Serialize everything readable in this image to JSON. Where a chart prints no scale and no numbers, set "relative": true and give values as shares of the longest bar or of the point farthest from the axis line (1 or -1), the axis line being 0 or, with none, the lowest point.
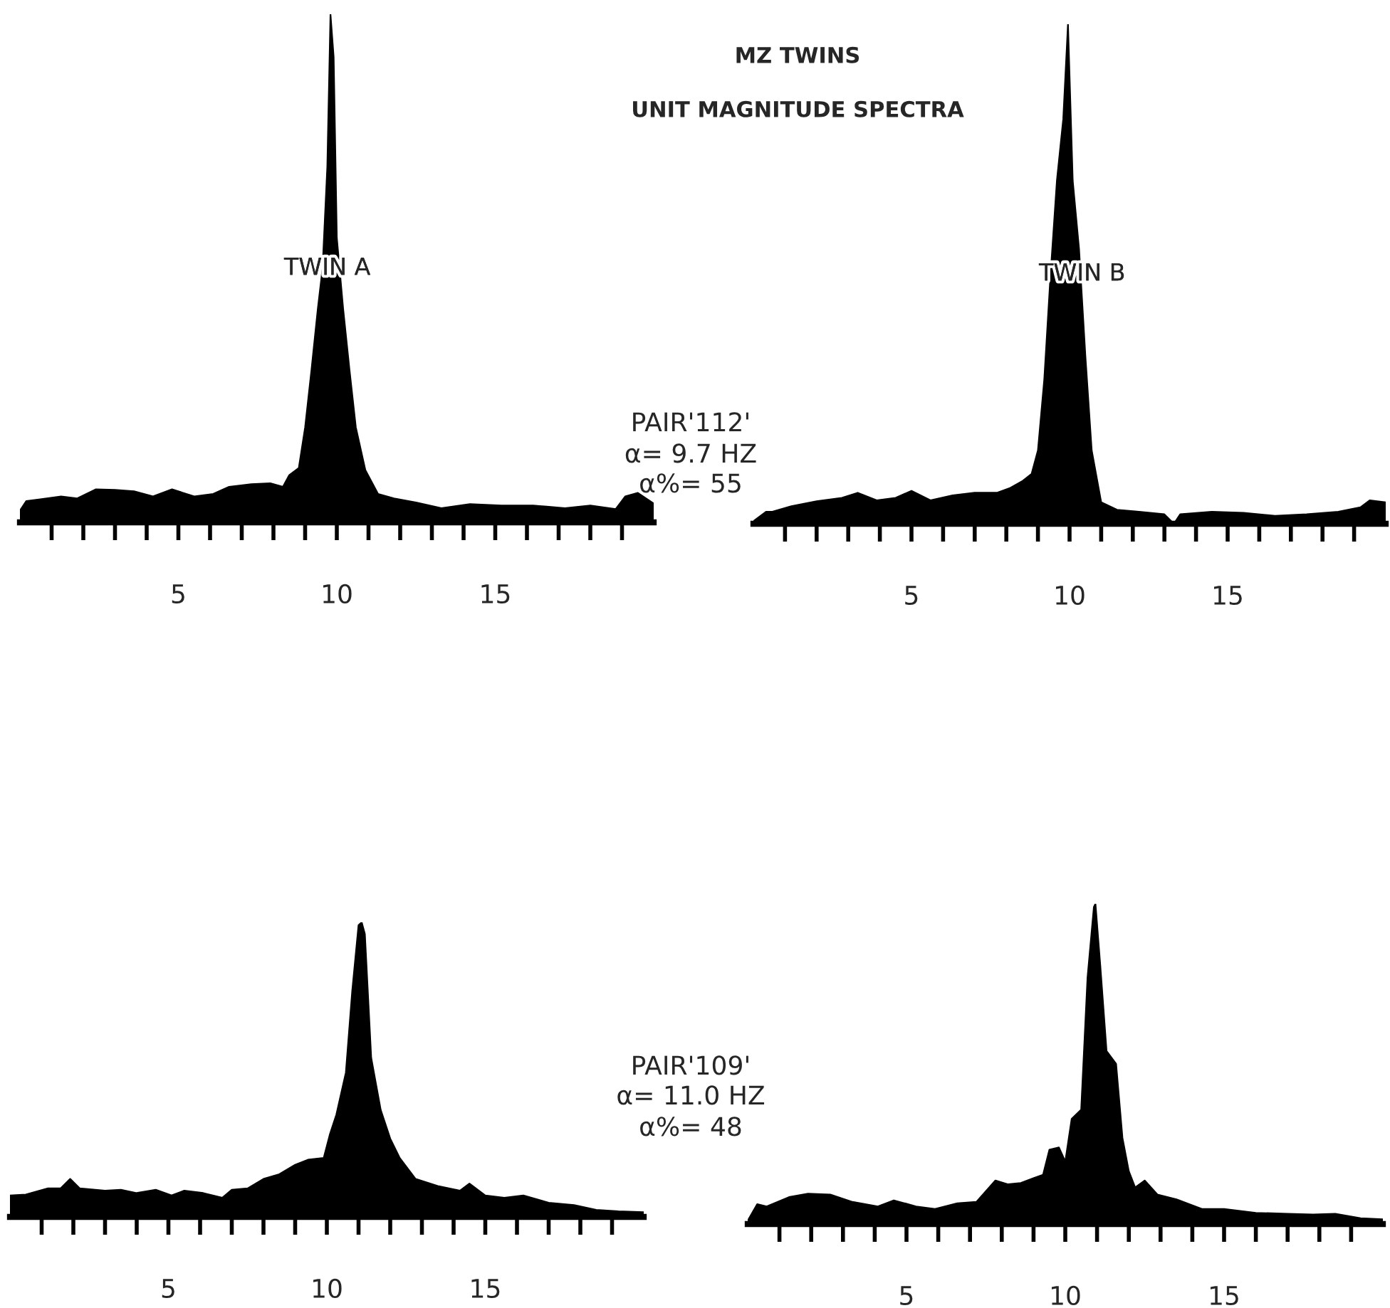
{
  "chart_data": [
    {
      "type": "area",
      "relative": true,
      "annotations": [
        "TWIN A",
        "PAIR'112'",
        "α= 9.7 HZ",
        "α%= 55"
      ],
      "xlim": [
        0,
        20
      ],
      "xticks": [
        {
          "value": 1,
          "label": null
        },
        {
          "value": 2,
          "label": null
        },
        {
          "value": 3,
          "label": null
        },
        {
          "value": 4,
          "label": null
        },
        5,
        {
          "value": 6,
          "label": null
        },
        {
          "value": 7,
          "label": null
        },
        {
          "value": 8,
          "label": null
        },
        {
          "value": 9,
          "label": null
        },
        10,
        {
          "value": 11,
          "label": null
        },
        {
          "value": 12,
          "label": null
        },
        {
          "value": 13,
          "label": null
        },
        {
          "value": 14,
          "label": null
        },
        15,
        {
          "value": 16,
          "label": null
        },
        {
          "value": 17,
          "label": null
        },
        {
          "value": 18,
          "label": null
        },
        {
          "value": 19,
          "label": null
        }
      ],
      "tick_labels": "x",
      "grid": false,
      "legend": false,
      "series": [
        {
          "color": "#000000",
          "x": [
            0.0,
            0.2,
            0.6,
            1.3,
            1.8,
            2.4,
            3.0,
            3.6,
            4.2,
            4.8,
            5.5,
            6.1,
            6.6,
            7.3,
            7.9,
            8.3,
            8.5,
            8.8,
            9.0,
            9.2,
            9.4,
            9.55,
            9.7,
            9.8,
            9.9,
            10.0,
            10.2,
            10.4,
            10.6,
            10.9,
            11.3,
            11.8,
            12.5,
            13.3,
            14.2,
            15.2,
            16.2,
            17.2,
            18.0,
            18.8,
            19.1,
            19.5,
            20.0
          ],
          "values": [
            0.023,
            0.042,
            0.045,
            0.051,
            0.047,
            0.065,
            0.064,
            0.061,
            0.051,
            0.065,
            0.051,
            0.056,
            0.07,
            0.075,
            0.077,
            0.07,
            0.093,
            0.107,
            0.187,
            0.3,
            0.42,
            0.5,
            0.7,
            1.0,
            0.916,
            0.56,
            0.42,
            0.3,
            0.187,
            0.103,
            0.056,
            0.047,
            0.039,
            0.028,
            0.036,
            0.033,
            0.033,
            0.028,
            0.033,
            0.026,
            0.051,
            0.058,
            0.037
          ]
        }
      ]
    },
    {
      "type": "area",
      "relative": true,
      "title": "MZ TWINS",
      "subtitle": "UNIT MAGNITUDE SPECTRA",
      "annotations": [
        "TWIN B"
      ],
      "xlim": [
        0,
        20
      ],
      "xticks": [
        {
          "value": 1,
          "label": null
        },
        {
          "value": 2,
          "label": null
        },
        {
          "value": 3,
          "label": null
        },
        {
          "value": 4,
          "label": null
        },
        5,
        {
          "value": 6,
          "label": null
        },
        {
          "value": 7,
          "label": null
        },
        {
          "value": 8,
          "label": null
        },
        {
          "value": 9,
          "label": null
        },
        10,
        {
          "value": 11,
          "label": null
        },
        {
          "value": 12,
          "label": null
        },
        {
          "value": 13,
          "label": null
        },
        {
          "value": 14,
          "label": null
        },
        15,
        {
          "value": 16,
          "label": null
        },
        {
          "value": 17,
          "label": null
        },
        {
          "value": 18,
          "label": null
        },
        {
          "value": 19,
          "label": null
        }
      ],
      "tick_labels": "x",
      "grid": false,
      "legend": false,
      "series": [
        {
          "color": "#000000",
          "x": [
            0.0,
            0.4,
            0.6,
            1.2,
            2.0,
            2.8,
            3.3,
            3.9,
            4.5,
            5.0,
            5.6,
            6.3,
            7.0,
            7.7,
            8.1,
            8.5,
            8.8,
            9.0,
            9.2,
            9.4,
            9.6,
            9.8,
            9.95,
            10.1,
            10.3,
            10.5,
            10.7,
            11.0,
            11.5,
            12.2,
            13.0,
            13.3,
            13.5,
            14.5,
            15.5,
            16.5,
            17.5,
            18.5,
            19.2,
            19.5,
            20.0
          ],
          "values": [
            0.005,
            0.024,
            0.024,
            0.035,
            0.045,
            0.052,
            0.062,
            0.047,
            0.052,
            0.066,
            0.047,
            0.057,
            0.062,
            0.062,
            0.071,
            0.085,
            0.1,
            0.147,
            0.289,
            0.5,
            0.687,
            0.81,
            1.0,
            0.687,
            0.55,
            0.336,
            0.147,
            0.043,
            0.028,
            0.024,
            0.019,
            0.0,
            0.019,
            0.024,
            0.022,
            0.016,
            0.019,
            0.024,
            0.033,
            0.047,
            0.043
          ]
        }
      ]
    },
    {
      "type": "area",
      "relative": true,
      "annotations": [
        "PAIR'109'",
        "α= 11.0 HZ",
        "α%= 48"
      ],
      "xlim": [
        0,
        20
      ],
      "xticks": [
        {
          "value": 1,
          "label": null
        },
        {
          "value": 2,
          "label": null
        },
        {
          "value": 3,
          "label": null
        },
        {
          "value": 4,
          "label": null
        },
        5,
        {
          "value": 6,
          "label": null
        },
        {
          "value": 7,
          "label": null
        },
        {
          "value": 8,
          "label": null
        },
        {
          "value": 9,
          "label": null
        },
        10,
        {
          "value": 11,
          "label": null
        },
        {
          "value": 12,
          "label": null
        },
        {
          "value": 13,
          "label": null
        },
        {
          "value": 14,
          "label": null
        },
        15,
        {
          "value": 16,
          "label": null
        },
        {
          "value": 17,
          "label": null
        },
        {
          "value": 18,
          "label": null
        },
        {
          "value": 19,
          "label": null
        }
      ],
      "tick_labels": "x",
      "grid": false,
      "legend": false,
      "series": [
        {
          "color": "#000000",
          "x": [
            0.0,
            0.5,
            1.2,
            1.6,
            1.9,
            2.2,
            3.0,
            3.5,
            4.0,
            4.6,
            5.1,
            5.5,
            6.1,
            6.7,
            7.0,
            7.5,
            8.0,
            8.5,
            9.0,
            9.4,
            9.9,
            10.1,
            10.3,
            10.6,
            10.8,
            11.0,
            11.1,
            11.2,
            11.4,
            11.7,
            12.0,
            12.3,
            12.8,
            13.5,
            14.2,
            14.5,
            15.0,
            15.6,
            16.2,
            17.0,
            17.8,
            18.5,
            19.2,
            20.0
          ],
          "values": [
            0.073,
            0.076,
            0.097,
            0.097,
            0.129,
            0.097,
            0.089,
            0.092,
            0.081,
            0.092,
            0.073,
            0.089,
            0.081,
            0.065,
            0.092,
            0.097,
            0.129,
            0.145,
            0.177,
            0.194,
            0.2,
            0.282,
            0.347,
            0.49,
            0.766,
            0.99,
            1.0,
            0.96,
            0.54,
            0.363,
            0.266,
            0.2,
            0.129,
            0.105,
            0.089,
            0.113,
            0.073,
            0.065,
            0.073,
            0.048,
            0.04,
            0.024,
            0.019,
            0.016
          ]
        }
      ]
    },
    {
      "type": "area",
      "relative": true,
      "xlim": [
        0,
        20
      ],
      "xticks": [
        {
          "value": 1,
          "label": null
        },
        {
          "value": 2,
          "label": null
        },
        {
          "value": 3,
          "label": null
        },
        {
          "value": 4,
          "label": null
        },
        5,
        {
          "value": 6,
          "label": null
        },
        {
          "value": 7,
          "label": null
        },
        {
          "value": 8,
          "label": null
        },
        {
          "value": 9,
          "label": null
        },
        10,
        {
          "value": 11,
          "label": null
        },
        {
          "value": 12,
          "label": null
        },
        {
          "value": 13,
          "label": null
        },
        {
          "value": 14,
          "label": null
        },
        15,
        {
          "value": 16,
          "label": null
        },
        {
          "value": 17,
          "label": null
        },
        {
          "value": 18,
          "label": null
        },
        {
          "value": 19,
          "label": null
        }
      ],
      "tick_labels": "x",
      "grid": false,
      "legend": false,
      "series": [
        {
          "color": "#000000",
          "x": [
            0.0,
            0.3,
            0.6,
            1.3,
            1.9,
            2.6,
            3.3,
            4.1,
            4.6,
            5.3,
            5.9,
            6.6,
            7.2,
            7.8,
            8.2,
            8.6,
            9.0,
            9.3,
            9.5,
            9.8,
            10.0,
            10.2,
            10.5,
            10.7,
            10.9,
            10.95,
            11.1,
            11.3,
            11.6,
            11.8,
            12.0,
            12.2,
            12.5,
            12.9,
            13.5,
            14.3,
            15.0,
            16.0,
            17.0,
            17.8,
            18.5,
            19.3,
            20.0
          ],
          "values": [
            0.01,
            0.062,
            0.055,
            0.084,
            0.095,
            0.092,
            0.069,
            0.055,
            0.074,
            0.055,
            0.047,
            0.065,
            0.069,
            0.136,
            0.124,
            0.128,
            0.143,
            0.154,
            0.232,
            0.239,
            0.195,
            0.328,
            0.357,
            0.77,
            0.99,
            1.0,
            0.81,
            0.54,
            0.5,
            0.269,
            0.165,
            0.114,
            0.136,
            0.092,
            0.077,
            0.047,
            0.047,
            0.035,
            0.032,
            0.03,
            0.032,
            0.018,
            0.015
          ]
        }
      ]
    }
  ]
}
